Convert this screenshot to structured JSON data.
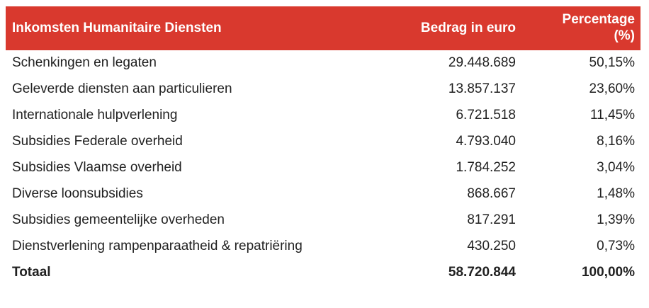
{
  "table": {
    "columns": {
      "category": "Inkomsten Humanitaire Diensten",
      "amount": "Bedrag in euro",
      "percentage": "Percentage (%)"
    },
    "rows": [
      {
        "label": "Schenkingen en legaten",
        "amount": "29.448.689",
        "percentage": "50,15%"
      },
      {
        "label": "Geleverde diensten aan particulieren",
        "amount": "13.857.137",
        "percentage": "23,60%"
      },
      {
        "label": "Internationale hulpverlening",
        "amount": "6.721.518",
        "percentage": "11,45%"
      },
      {
        "label": "Subsidies Federale overheid",
        "amount": "4.793.040",
        "percentage": "8,16%"
      },
      {
        "label": "Subsidies Vlaamse overheid",
        "amount": "1.784.252",
        "percentage": "3,04%"
      },
      {
        "label": "Diverse loonsubsidies",
        "amount": "868.667",
        "percentage": "1,48%"
      },
      {
        "label": "Subsidies gemeentelijke overheden",
        "amount": "817.291",
        "percentage": "1,39%"
      },
      {
        "label": "Dienstverlening rampenparaatheid & repatriëring",
        "amount": "430.250",
        "percentage": "0,73%"
      }
    ],
    "total": {
      "label": "Totaal",
      "amount": "58.720.844",
      "percentage": "100,00%"
    },
    "colors": {
      "header_bg": "#d9392e",
      "header_text": "#ffffff",
      "body_text": "#212121"
    }
  },
  "chart_data": {
    "type": "table",
    "title": "Inkomsten Humanitaire Diensten",
    "columns": [
      "Inkomsten Humanitaire Diensten",
      "Bedrag in euro",
      "Percentage (%)"
    ],
    "rows": [
      [
        "Schenkingen en legaten",
        29448689,
        50.15
      ],
      [
        "Geleverde diensten aan particulieren",
        13857137,
        23.6
      ],
      [
        "Internationale hulpverlening",
        6721518,
        11.45
      ],
      [
        "Subsidies Federale overheid",
        4793040,
        8.16
      ],
      [
        "Subsidies Vlaamse overheid",
        1784252,
        3.04
      ],
      [
        "Diverse loonsubsidies",
        868667,
        1.48
      ],
      [
        "Subsidies gemeentelijke overheden",
        817291,
        1.39
      ],
      [
        "Dienstverlening rampenparaatheid & repatriëring",
        430250,
        0.73
      ]
    ],
    "total_row": [
      "Totaal",
      58720844,
      100.0
    ],
    "notes": "amounts in euro with dot thousand separators; percentages use comma decimal separator"
  }
}
